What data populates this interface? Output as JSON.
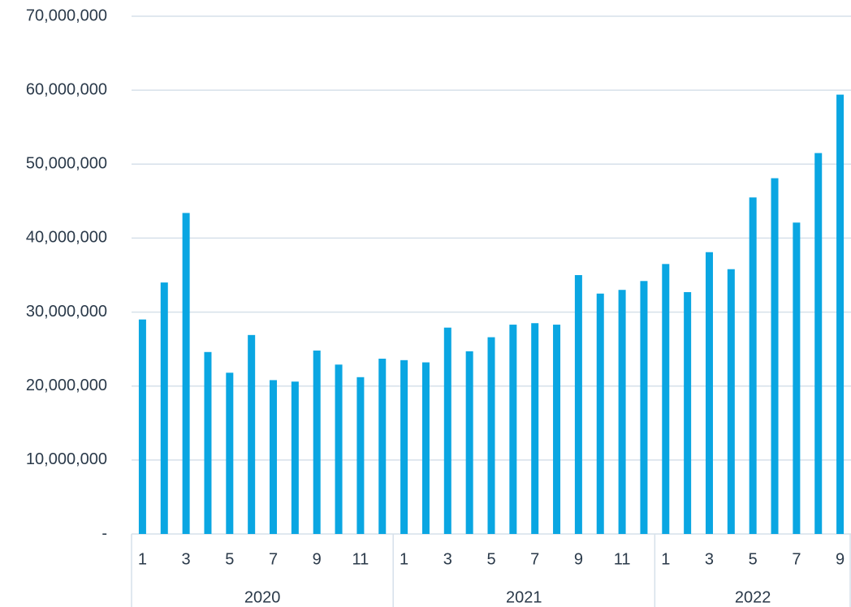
{
  "chart_data": {
    "type": "bar",
    "categories": [
      "1",
      null,
      "3",
      null,
      "5",
      null,
      "7",
      null,
      "9",
      null,
      "11",
      null,
      "1",
      null,
      "3",
      null,
      "5",
      null,
      "7",
      null,
      "9",
      null,
      "11",
      null,
      "1",
      null,
      "3",
      null,
      "5",
      null,
      "7",
      null,
      "9"
    ],
    "category_groups": [
      {
        "label": "2020",
        "count": 12
      },
      {
        "label": "2021",
        "count": 12
      },
      {
        "label": "2022",
        "count": 9
      }
    ],
    "values": [
      29000000,
      34000000,
      43400000,
      24600000,
      21800000,
      26900000,
      20800000,
      20600000,
      24800000,
      22900000,
      21200000,
      23700000,
      23500000,
      23200000,
      27900000,
      24700000,
      26600000,
      28300000,
      28500000,
      28300000,
      35000000,
      32500000,
      33000000,
      34200000,
      36500000,
      32700000,
      38100000,
      35800000,
      45500000,
      48100000,
      42100000,
      51500000,
      59400000
    ],
    "color": "#0aa6e2",
    "ylim": [
      0,
      70000000
    ],
    "yticks": [
      {
        "value": 0,
        "label": "-"
      },
      {
        "value": 10000000,
        "label": "10,000,000"
      },
      {
        "value": 20000000,
        "label": "20,000,000"
      },
      {
        "value": 30000000,
        "label": "30,000,000"
      },
      {
        "value": 40000000,
        "label": "40,000,000"
      },
      {
        "value": 50000000,
        "label": "50,000,000"
      },
      {
        "value": 60000000,
        "label": "60,000,000"
      },
      {
        "value": 70000000,
        "label": "70,000,000"
      }
    ],
    "grid": true
  }
}
